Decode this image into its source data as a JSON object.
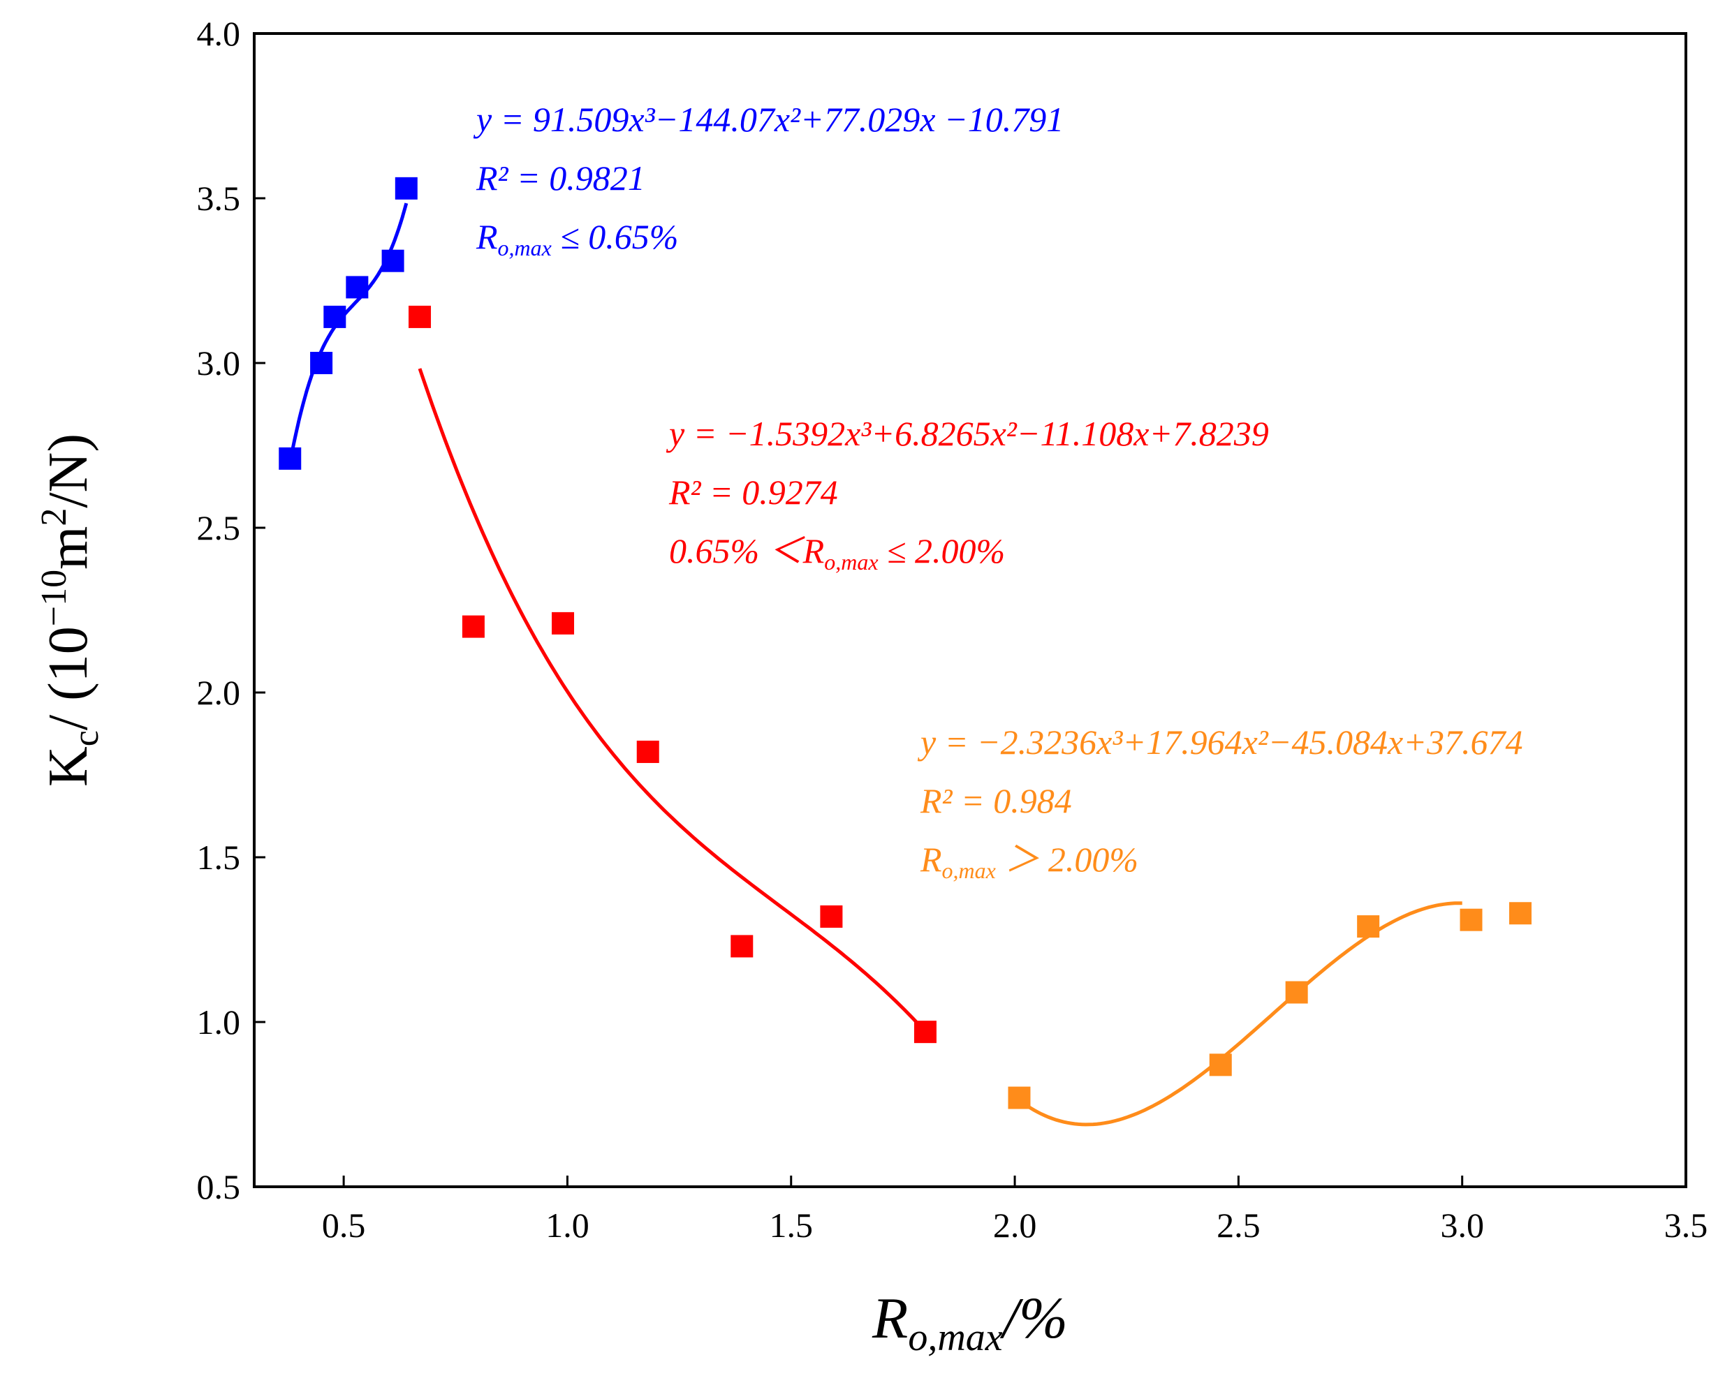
{
  "chart_data": {
    "type": "scatter",
    "title": "",
    "xlabel": {
      "main": "R",
      "sub": "o,max",
      "tail": "/%"
    },
    "ylabel": {
      "k": "K",
      "ksub": "c",
      "mid": "/ (10",
      "sup1": "−10",
      "unit": "m",
      "sup2": "2",
      "tail": "/N)"
    },
    "xlim": [
      0.3,
      3.5
    ],
    "ylim": [
      0.5,
      4.0
    ],
    "xticks": [
      0.5,
      1.0,
      1.5,
      2.0,
      2.5,
      3.0,
      3.5
    ],
    "yticks": [
      0.5,
      1.0,
      1.5,
      2.0,
      2.5,
      3.0,
      3.5,
      4.0
    ],
    "xtick_labels": [
      "0.5",
      "1.0",
      "1.5",
      "2.0",
      "2.5",
      "3.0",
      "3.5"
    ],
    "ytick_labels": [
      "0.5",
      "1.0",
      "1.5",
      "2.0",
      "2.5",
      "3.0",
      "3.5",
      "4.0"
    ],
    "grid": false,
    "series": [
      {
        "name": "Ro,max ≤ 0.65%",
        "color": "#0000ff",
        "points": [
          [
            0.38,
            2.71
          ],
          [
            0.45,
            3.0
          ],
          [
            0.48,
            3.14
          ],
          [
            0.53,
            3.23
          ],
          [
            0.61,
            3.31
          ],
          [
            0.64,
            3.53
          ]
        ],
        "fit": {
          "coeffs": [
            91.509,
            -144.07,
            77.029,
            -10.791
          ],
          "x_range": [
            0.38,
            0.64
          ]
        },
        "annotation": {
          "equation": "y = 91.509x³−144.07x²+77.029x −10.791",
          "r2": "R² = 0.9821",
          "range": {
            "r": "R",
            "sub": "o,max",
            "text": " ≤ 0.65%"
          }
        }
      },
      {
        "name": "0.65% < Ro,max ≤ 2.00%",
        "color": "#ff0000",
        "points": [
          [
            0.67,
            3.14
          ],
          [
            0.79,
            2.2
          ],
          [
            0.99,
            2.21
          ],
          [
            1.18,
            1.82
          ],
          [
            1.39,
            1.23
          ],
          [
            1.59,
            1.32
          ],
          [
            1.8,
            0.97
          ]
        ],
        "fit": {
          "coeffs": [
            -1.5392,
            6.8265,
            -11.108,
            7.8239
          ],
          "x_range": [
            0.67,
            1.8
          ]
        },
        "annotation": {
          "equation": "y = −1.5392x³+6.8265x²−11.108x+7.8239",
          "r2": "R² = 0.9274",
          "range": {
            "lead": "0.65% ＜",
            "r": "R",
            "sub": "o,max",
            "text": " ≤ 2.00%"
          }
        }
      },
      {
        "name": "Ro,max > 2.00%",
        "color": "#ff8c1a",
        "points": [
          [
            2.01,
            0.77
          ],
          [
            2.46,
            0.87
          ],
          [
            2.63,
            1.09
          ],
          [
            2.79,
            1.29
          ],
          [
            3.02,
            1.31
          ],
          [
            3.13,
            1.33
          ]
        ],
        "fit": {
          "coeffs": [
            -2.3236,
            17.964,
            -45.084,
            37.674
          ],
          "x_range": [
            2.01,
            3.0
          ]
        },
        "annotation": {
          "equation": "y = −2.3236x³+17.964x²−45.084x+37.674",
          "r2": "R² = 0.984",
          "range": {
            "r": "R",
            "sub": "o,max",
            "text": " ＞ 2.00%"
          }
        }
      }
    ]
  }
}
